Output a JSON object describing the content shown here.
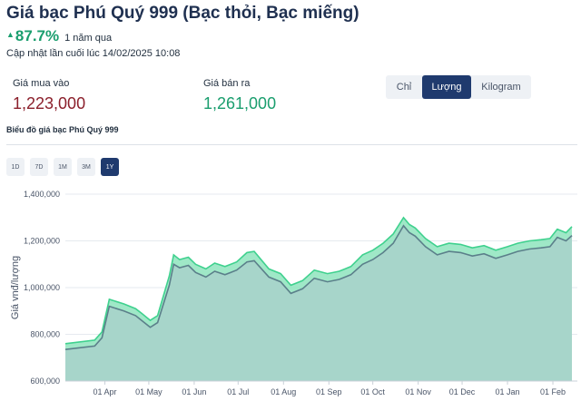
{
  "header": {
    "title": "Giá bạc Phú Quý 999 (Bạc thỏi, Bạc miếng)",
    "change_pct": "87.7%",
    "change_period": "1 năm qua",
    "updated": "Cập nhật lần cuối lúc 14/02/2025 10:08"
  },
  "prices": {
    "buy_label": "Giá mua vào",
    "buy_value": "1,223,000",
    "sell_label": "Giá bán ra",
    "sell_value": "1,261,000"
  },
  "unit_toggle": {
    "options": [
      "Chỉ",
      "Lượng",
      "Kilogram"
    ],
    "selected": "Lượng"
  },
  "chart_section": {
    "title": "Biểu đồ giá bạc Phú Quý 999",
    "ranges": [
      "1D",
      "7D",
      "1M",
      "3M",
      "1Y"
    ],
    "selected_range": "1Y"
  },
  "colors": {
    "accent": "#1f3a6e",
    "up": "#1a9e6e",
    "down": "#8b1f2b",
    "sell_line": "#3fd18e",
    "buy_line": "#5b7f8a",
    "area_fill": "#a7d5ca"
  },
  "chart_data": {
    "type": "area",
    "title": "",
    "xlabel": "",
    "ylabel": "Giá vnđ/lượng",
    "ylim": [
      600000,
      1400000
    ],
    "yticks": [
      "600,000",
      "800,000",
      "1,000,000",
      "1,200,000",
      "1,400,000"
    ],
    "xticks": [
      "01 Apr",
      "01 May",
      "01 Jun",
      "01 Jul",
      "01 Aug",
      "01 Sep",
      "01 Oct",
      "01 Nov",
      "01 Dec",
      "01 Jan",
      "01 Feb"
    ],
    "grid": true,
    "series": [
      {
        "name": "",
        "role": "sell",
        "points": [
          [
            "2024-03-05",
            760000
          ],
          [
            "2024-03-25",
            775000
          ],
          [
            "2024-03-30",
            810000
          ],
          [
            "2024-04-04",
            950000
          ],
          [
            "2024-04-14",
            930000
          ],
          [
            "2024-04-22",
            910000
          ],
          [
            "2024-04-26",
            890000
          ],
          [
            "2024-05-02",
            860000
          ],
          [
            "2024-05-07",
            880000
          ],
          [
            "2024-05-15",
            1050000
          ],
          [
            "2024-05-18",
            1140000
          ],
          [
            "2024-05-22",
            1120000
          ],
          [
            "2024-05-28",
            1130000
          ],
          [
            "2024-06-02",
            1100000
          ],
          [
            "2024-06-09",
            1080000
          ],
          [
            "2024-06-15",
            1105000
          ],
          [
            "2024-06-22",
            1090000
          ],
          [
            "2024-06-30",
            1110000
          ],
          [
            "2024-07-07",
            1150000
          ],
          [
            "2024-07-12",
            1155000
          ],
          [
            "2024-07-22",
            1080000
          ],
          [
            "2024-07-30",
            1060000
          ],
          [
            "2024-08-06",
            1010000
          ],
          [
            "2024-08-14",
            1030000
          ],
          [
            "2024-08-22",
            1075000
          ],
          [
            "2024-08-31",
            1060000
          ],
          [
            "2024-09-08",
            1070000
          ],
          [
            "2024-09-16",
            1090000
          ],
          [
            "2024-09-24",
            1140000
          ],
          [
            "2024-10-01",
            1160000
          ],
          [
            "2024-10-08",
            1190000
          ],
          [
            "2024-10-15",
            1230000
          ],
          [
            "2024-10-22",
            1300000
          ],
          [
            "2024-10-26",
            1270000
          ],
          [
            "2024-10-30",
            1255000
          ],
          [
            "2024-11-06",
            1210000
          ],
          [
            "2024-11-14",
            1175000
          ],
          [
            "2024-11-22",
            1190000
          ],
          [
            "2024-11-30",
            1185000
          ],
          [
            "2024-12-08",
            1170000
          ],
          [
            "2024-12-16",
            1180000
          ],
          [
            "2024-12-24",
            1160000
          ],
          [
            "2025-01-01",
            1175000
          ],
          [
            "2025-01-08",
            1190000
          ],
          [
            "2025-01-16",
            1200000
          ],
          [
            "2025-01-24",
            1205000
          ],
          [
            "2025-01-30",
            1210000
          ],
          [
            "2025-02-04",
            1250000
          ],
          [
            "2025-02-10",
            1235000
          ],
          [
            "2025-02-14",
            1261000
          ]
        ]
      },
      {
        "name": "",
        "role": "buy",
        "points": [
          [
            "2024-03-05",
            735000
          ],
          [
            "2024-03-25",
            750000
          ],
          [
            "2024-03-30",
            785000
          ],
          [
            "2024-04-04",
            920000
          ],
          [
            "2024-04-14",
            900000
          ],
          [
            "2024-04-22",
            880000
          ],
          [
            "2024-04-26",
            860000
          ],
          [
            "2024-05-02",
            830000
          ],
          [
            "2024-05-07",
            850000
          ],
          [
            "2024-05-15",
            1010000
          ],
          [
            "2024-05-18",
            1100000
          ],
          [
            "2024-05-22",
            1085000
          ],
          [
            "2024-05-28",
            1095000
          ],
          [
            "2024-06-02",
            1065000
          ],
          [
            "2024-06-09",
            1045000
          ],
          [
            "2024-06-15",
            1070000
          ],
          [
            "2024-06-22",
            1055000
          ],
          [
            "2024-06-30",
            1075000
          ],
          [
            "2024-07-07",
            1110000
          ],
          [
            "2024-07-12",
            1115000
          ],
          [
            "2024-07-22",
            1045000
          ],
          [
            "2024-07-30",
            1025000
          ],
          [
            "2024-08-06",
            975000
          ],
          [
            "2024-08-14",
            995000
          ],
          [
            "2024-08-22",
            1040000
          ],
          [
            "2024-08-31",
            1025000
          ],
          [
            "2024-09-08",
            1035000
          ],
          [
            "2024-09-16",
            1055000
          ],
          [
            "2024-09-24",
            1100000
          ],
          [
            "2024-10-01",
            1120000
          ],
          [
            "2024-10-08",
            1150000
          ],
          [
            "2024-10-15",
            1190000
          ],
          [
            "2024-10-22",
            1265000
          ],
          [
            "2024-10-26",
            1235000
          ],
          [
            "2024-10-30",
            1220000
          ],
          [
            "2024-11-06",
            1175000
          ],
          [
            "2024-11-14",
            1140000
          ],
          [
            "2024-11-22",
            1155000
          ],
          [
            "2024-11-30",
            1150000
          ],
          [
            "2024-12-08",
            1135000
          ],
          [
            "2024-12-16",
            1145000
          ],
          [
            "2024-12-24",
            1125000
          ],
          [
            "2025-01-01",
            1140000
          ],
          [
            "2025-01-08",
            1155000
          ],
          [
            "2025-01-16",
            1165000
          ],
          [
            "2025-01-24",
            1170000
          ],
          [
            "2025-01-30",
            1175000
          ],
          [
            "2025-02-04",
            1215000
          ],
          [
            "2025-02-10",
            1200000
          ],
          [
            "2025-02-14",
            1223000
          ]
        ]
      }
    ]
  }
}
